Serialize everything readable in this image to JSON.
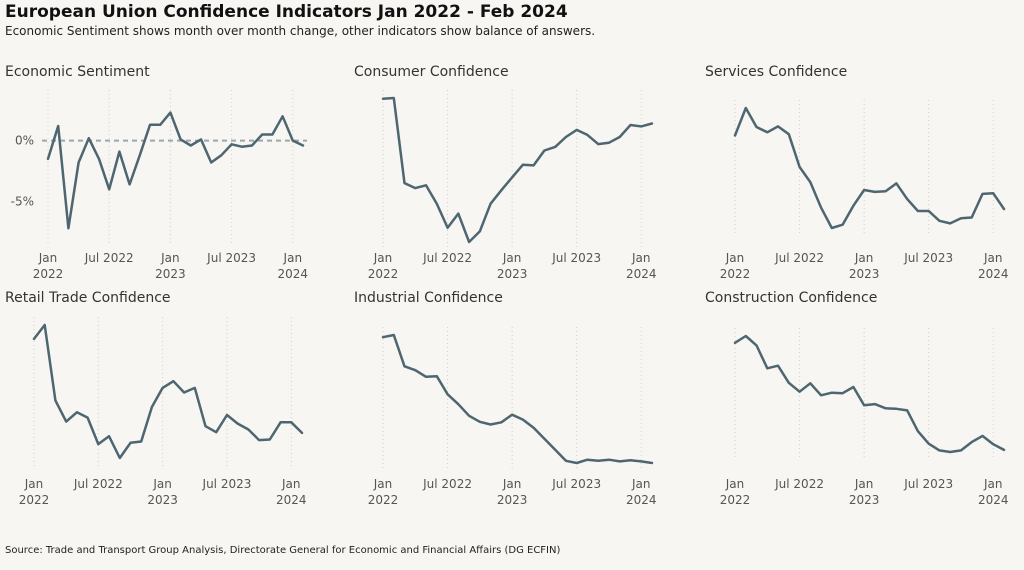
{
  "header": {
    "title": "European Union Confidence Indicators Jan 2022 - Feb 2024",
    "subtitle": "Economic Sentiment shows month over month change, other indicators show balance of answers."
  },
  "footer": {
    "source": "Source: Trade and Transport Group Analysis, Directorate General for Economic and Financial Affairs (DG ECFIN)"
  },
  "colors": {
    "line": "#4d6670",
    "grid": "#cfcfcf",
    "zero_line": "#9aa8ad",
    "background": "#f8f6f2"
  },
  "x_ticks": [
    {
      "idx": 0,
      "line1": "Jan",
      "line2": "2022"
    },
    {
      "idx": 6,
      "line1": "Jul 2022",
      "line2": ""
    },
    {
      "idx": 12,
      "line1": "Jan",
      "line2": "2023"
    },
    {
      "idx": 18,
      "line1": "Jul 2023",
      "line2": ""
    },
    {
      "idx": 24,
      "line1": "Jan",
      "line2": "2024"
    }
  ],
  "chart_data": [
    {
      "type": "line",
      "title": "Economic Sentiment",
      "months": [
        "2022-01",
        "2022-02",
        "2022-03",
        "2022-04",
        "2022-05",
        "2022-06",
        "2022-07",
        "2022-08",
        "2022-09",
        "2022-10",
        "2022-11",
        "2022-12",
        "2023-01",
        "2023-02",
        "2023-03",
        "2023-04",
        "2023-05",
        "2023-06",
        "2023-07",
        "2023-08",
        "2023-09",
        "2023-10",
        "2023-11",
        "2023-12",
        "2024-01",
        "2024-02"
      ],
      "values": [
        -1.5,
        1.2,
        -7.2,
        -1.8,
        0.2,
        -1.5,
        -4.0,
        -0.9,
        -3.6,
        -1.2,
        1.3,
        1.3,
        2.3,
        0.1,
        -0.4,
        0.1,
        -1.8,
        -1.2,
        -0.3,
        -0.5,
        -0.4,
        0.5,
        0.5,
        2.0,
        0.0,
        -0.4
      ],
      "y_ticks": [
        "0%",
        "-5%"
      ],
      "ylim": [
        -8,
        3.5
      ],
      "zero_line": true
    },
    {
      "type": "line",
      "title": "Consumer Confidence",
      "months": [
        "2022-01",
        "2022-02",
        "2022-03",
        "2022-04",
        "2022-05",
        "2022-06",
        "2022-07",
        "2022-08",
        "2022-09",
        "2022-10",
        "2022-11",
        "2022-12",
        "2023-01",
        "2023-02",
        "2023-03",
        "2023-04",
        "2023-05",
        "2023-06",
        "2023-07",
        "2023-08",
        "2023-09",
        "2023-10",
        "2023-11",
        "2023-12",
        "2024-01",
        "2024-02"
      ],
      "values": [
        -8.6,
        -8.5,
        -20.5,
        -21.2,
        -20.8,
        -23.4,
        -26.8,
        -24.8,
        -28.8,
        -27.3,
        -23.4,
        -21.5,
        -19.7,
        -17.9,
        -18.0,
        -15.9,
        -15.4,
        -14.0,
        -13.0,
        -13.7,
        -15.0,
        -14.8,
        -14.0,
        -12.3,
        -12.5,
        -12.1
      ]
    },
    {
      "type": "line",
      "title": "Services Confidence",
      "months": [
        "2022-01",
        "2022-02",
        "2022-03",
        "2022-04",
        "2022-05",
        "2022-06",
        "2022-07",
        "2022-08",
        "2022-09",
        "2022-10",
        "2022-11",
        "2022-12",
        "2023-01",
        "2023-02",
        "2023-03",
        "2023-04",
        "2023-05",
        "2023-06",
        "2023-07",
        "2023-08",
        "2023-09",
        "2023-10",
        "2023-11",
        "2023-12",
        "2024-01",
        "2024-02"
      ],
      "values": [
        10.4,
        14.6,
        11.7,
        10.9,
        11.8,
        10.6,
        5.6,
        3.3,
        -0.6,
        -3.7,
        -3.2,
        -0.3,
        2.1,
        1.8,
        1.9,
        3.1,
        0.7,
        -1.1,
        -1.1,
        -2.6,
        -3.0,
        -2.2,
        -2.1,
        1.5,
        1.6,
        -0.8
      ]
    },
    {
      "type": "line",
      "title": "Retail Trade Confidence",
      "months": [
        "2022-01",
        "2022-02",
        "2022-03",
        "2022-04",
        "2022-05",
        "2022-06",
        "2022-07",
        "2022-08",
        "2022-09",
        "2022-10",
        "2022-11",
        "2022-12",
        "2023-01",
        "2023-02",
        "2023-03",
        "2023-04",
        "2023-05",
        "2023-06",
        "2023-07",
        "2023-08",
        "2023-09",
        "2023-10",
        "2023-11",
        "2023-12",
        "2024-01",
        "2024-02"
      ],
      "values": [
        4.0,
        6.1,
        -5.3,
        -8.5,
        -7.1,
        -7.9,
        -11.9,
        -10.7,
        -14.0,
        -11.7,
        -11.5,
        -6.3,
        -3.4,
        -2.4,
        -4.1,
        -3.4,
        -9.2,
        -10.1,
        -7.5,
        -8.8,
        -9.7,
        -11.3,
        -11.2,
        -8.6,
        -8.6,
        -10.2
      ]
    },
    {
      "type": "line",
      "title": "Industrial Confidence",
      "months": [
        "2022-01",
        "2022-02",
        "2022-03",
        "2022-04",
        "2022-05",
        "2022-06",
        "2022-07",
        "2022-08",
        "2022-09",
        "2022-10",
        "2022-11",
        "2022-12",
        "2023-01",
        "2023-02",
        "2023-03",
        "2023-04",
        "2023-05",
        "2023-06",
        "2023-07",
        "2023-08",
        "2023-09",
        "2023-10",
        "2023-11",
        "2023-12",
        "2024-01",
        "2024-02"
      ],
      "values": [
        13.9,
        14.3,
        8.6,
        7.9,
        6.7,
        6.8,
        3.5,
        1.7,
        -0.4,
        -1.5,
        -2.0,
        -1.6,
        -0.2,
        -1.1,
        -2.6,
        -4.6,
        -6.6,
        -8.6,
        -9.0,
        -8.4,
        -8.6,
        -8.4,
        -8.7,
        -8.5,
        -8.7,
        -9.0
      ]
    },
    {
      "type": "line",
      "title": "Construction Confidence",
      "months": [
        "2022-01",
        "2022-02",
        "2022-03",
        "2022-04",
        "2022-05",
        "2022-06",
        "2022-07",
        "2022-08",
        "2022-09",
        "2022-10",
        "2022-11",
        "2022-12",
        "2023-01",
        "2023-02",
        "2023-03",
        "2023-04",
        "2023-05",
        "2023-06",
        "2023-07",
        "2023-08",
        "2023-09",
        "2023-10",
        "2023-11",
        "2023-12",
        "2024-01",
        "2024-02"
      ],
      "values": [
        6.1,
        7.4,
        5.6,
        1.2,
        1.7,
        -1.6,
        -3.3,
        -1.7,
        -4.0,
        -3.5,
        -3.6,
        -2.4,
        -5.9,
        -5.7,
        -6.5,
        -6.6,
        -6.9,
        -10.9,
        -13.3,
        -14.6,
        -14.9,
        -14.6,
        -13.0,
        -11.8,
        -13.4,
        -14.5
      ]
    }
  ]
}
